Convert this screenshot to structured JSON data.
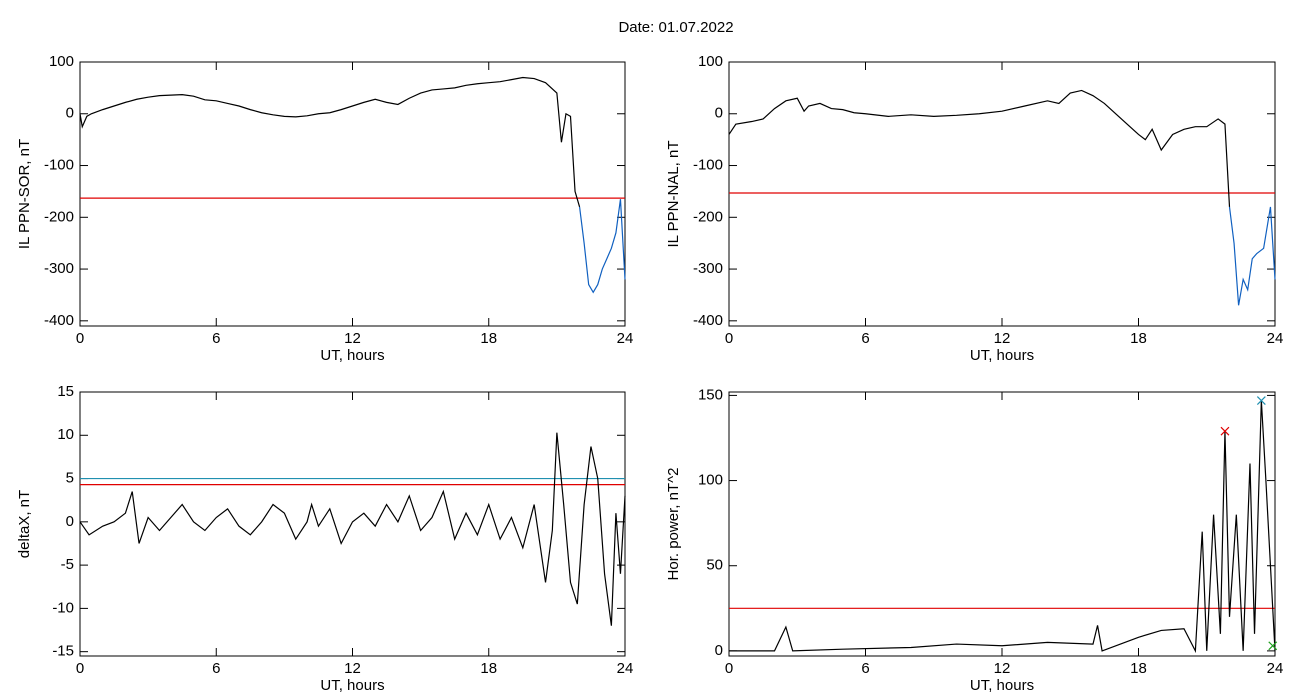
{
  "title": "Date:  01.07.2022",
  "chart_data": [
    {
      "type": "line",
      "ylabel": "IL PPN-SOR, nT",
      "xlabel": "UT, hours",
      "xlim": [
        0,
        24
      ],
      "xticks": [
        0,
        6,
        12,
        18,
        24
      ],
      "ylim": [
        -410,
        100
      ],
      "yticks": [
        -400,
        -300,
        -200,
        -100,
        0,
        100
      ],
      "hlines": [
        {
          "value": -163,
          "color": "#e00000"
        }
      ],
      "series": [
        {
          "color": "#000000",
          "x": [
            0,
            0.1,
            0.3,
            0.5,
            1,
            1.5,
            2,
            2.5,
            3,
            3.5,
            4,
            4.5,
            5,
            5.5,
            6,
            6.5,
            7,
            7.5,
            8,
            8.5,
            9,
            9.5,
            10,
            10.5,
            11,
            11.5,
            12,
            12.5,
            13,
            13.5,
            14,
            14.5,
            15,
            15.5,
            16,
            16.5,
            17,
            17.5,
            18,
            18.5,
            19,
            19.5,
            20,
            20.5,
            21,
            21.2,
            21.4,
            21.6,
            21.8,
            22
          ],
          "values": [
            0,
            -25,
            -5,
            0,
            8,
            15,
            22,
            28,
            32,
            35,
            36,
            37,
            34,
            27,
            25,
            20,
            15,
            8,
            2,
            -2,
            -5,
            -6,
            -4,
            0,
            2,
            8,
            15,
            22,
            28,
            22,
            18,
            30,
            40,
            46,
            48,
            50,
            55,
            58,
            60,
            62,
            66,
            70,
            68,
            60,
            40,
            -55,
            0,
            -5,
            -150,
            -180
          ]
        },
        {
          "color": "#1060c0",
          "x": [
            22,
            22.2,
            22.4,
            22.6,
            22.8,
            23,
            23.2,
            23.4,
            23.6,
            23.8,
            24
          ],
          "values": [
            -180,
            -250,
            -330,
            -345,
            -330,
            -300,
            -280,
            -260,
            -230,
            -165,
            -320
          ]
        }
      ]
    },
    {
      "type": "line",
      "ylabel": "IL PPN-NAL, nT",
      "xlabel": "UT, hours",
      "xlim": [
        0,
        24
      ],
      "xticks": [
        0,
        6,
        12,
        18,
        24
      ],
      "ylim": [
        -410,
        100
      ],
      "yticks": [
        -400,
        -300,
        -200,
        -100,
        0,
        100
      ],
      "hlines": [
        {
          "value": -153,
          "color": "#e00000"
        }
      ],
      "series": [
        {
          "color": "#000000",
          "x": [
            0,
            0.3,
            1,
            1.5,
            2,
            2.5,
            3,
            3.3,
            3.5,
            4,
            4.5,
            5,
            5.5,
            6,
            7,
            8,
            9,
            10,
            11,
            12,
            13,
            14,
            14.5,
            15,
            15.5,
            16,
            16.5,
            17,
            18,
            18.3,
            18.6,
            19,
            19.5,
            20,
            20.5,
            21,
            21.5,
            21.8,
            22
          ],
          "values": [
            -40,
            -20,
            -15,
            -10,
            10,
            25,
            30,
            5,
            15,
            20,
            10,
            8,
            2,
            0,
            -5,
            -2,
            -5,
            -3,
            0,
            5,
            15,
            25,
            20,
            40,
            45,
            35,
            20,
            0,
            -40,
            -50,
            -30,
            -70,
            -40,
            -30,
            -25,
            -25,
            -10,
            -20,
            -180
          ]
        },
        {
          "color": "#1060c0",
          "x": [
            22,
            22.2,
            22.4,
            22.6,
            22.8,
            23,
            23.2,
            23.5,
            23.8,
            24
          ],
          "values": [
            -180,
            -250,
            -370,
            -320,
            -340,
            -280,
            -270,
            -260,
            -180,
            -320
          ]
        }
      ]
    },
    {
      "type": "line",
      "ylabel": "deltaX, nT",
      "xlabel": "UT, hours",
      "xlim": [
        0,
        24
      ],
      "xticks": [
        0,
        6,
        12,
        18,
        24
      ],
      "ylim": [
        -15.5,
        15
      ],
      "yticks": [
        -15,
        -10,
        -5,
        0,
        5,
        10,
        15
      ],
      "hlines": [
        {
          "value": 4.3,
          "color": "#e00000"
        },
        {
          "value": 5,
          "color": "#2090b0"
        }
      ],
      "series": [
        {
          "color": "#000000",
          "x": [
            0,
            0.4,
            1,
            1.5,
            2,
            2.3,
            2.6,
            3,
            3.5,
            4,
            4.5,
            5,
            5.5,
            6,
            6.5,
            7,
            7.5,
            8,
            8.5,
            9,
            9.5,
            10,
            10.2,
            10.5,
            11,
            11.5,
            12,
            12.5,
            13,
            13.5,
            14,
            14.5,
            15,
            15.5,
            16,
            16.5,
            17,
            17.5,
            18,
            18.5,
            19,
            19.5,
            20,
            20.5,
            20.8,
            21,
            21.3,
            21.6,
            21.9,
            22.2,
            22.5,
            22.8,
            23.1,
            23.4,
            23.6,
            23.8,
            24
          ],
          "values": [
            0,
            -1.5,
            -0.5,
            0,
            1,
            3.5,
            -2.5,
            0.5,
            -1,
            0.5,
            2,
            0,
            -1,
            0.5,
            1.5,
            -0.5,
            -1.5,
            0,
            2,
            1,
            -2,
            0,
            2,
            -0.5,
            1.5,
            -2.5,
            0,
            1,
            -0.5,
            2,
            0,
            3,
            -1,
            0.5,
            3.5,
            -2,
            1,
            -1.5,
            2,
            -2,
            0.5,
            -3,
            2,
            -7,
            -1,
            10.3,
            2,
            -7,
            -9.5,
            2,
            8.7,
            5,
            -6,
            -12,
            1,
            -6,
            3
          ]
        }
      ]
    },
    {
      "type": "line",
      "ylabel": "Hor. power, nT^2",
      "xlabel": "UT, hours",
      "xlim": [
        0,
        24
      ],
      "xticks": [
        0,
        6,
        12,
        18,
        24
      ],
      "ylim": [
        -3,
        152
      ],
      "yticks": [
        0,
        50,
        100,
        150
      ],
      "hlines": [
        {
          "value": 25,
          "color": "#e00000"
        }
      ],
      "markers": [
        {
          "x": 21.8,
          "value": 129,
          "color": "#e00000"
        },
        {
          "x": 23.4,
          "value": 147,
          "color": "#2090b0"
        },
        {
          "x": 23.9,
          "value": 3,
          "color": "#20a020"
        }
      ],
      "series": [
        {
          "color": "#000000",
          "x": [
            0,
            2,
            2.5,
            2.8,
            5,
            8,
            10,
            12,
            14,
            16,
            16.2,
            16.4,
            18,
            19,
            20,
            20.5,
            20.8,
            21,
            21.3,
            21.6,
            21.8,
            22,
            22.3,
            22.6,
            22.9,
            23.1,
            23.4,
            23.6,
            24
          ],
          "values": [
            0,
            0,
            14,
            0,
            1,
            2,
            4,
            3,
            5,
            4,
            15,
            0,
            8,
            12,
            13,
            0,
            70,
            0,
            80,
            10,
            129,
            20,
            80,
            0,
            110,
            10,
            147,
            100,
            0
          ]
        }
      ]
    }
  ]
}
